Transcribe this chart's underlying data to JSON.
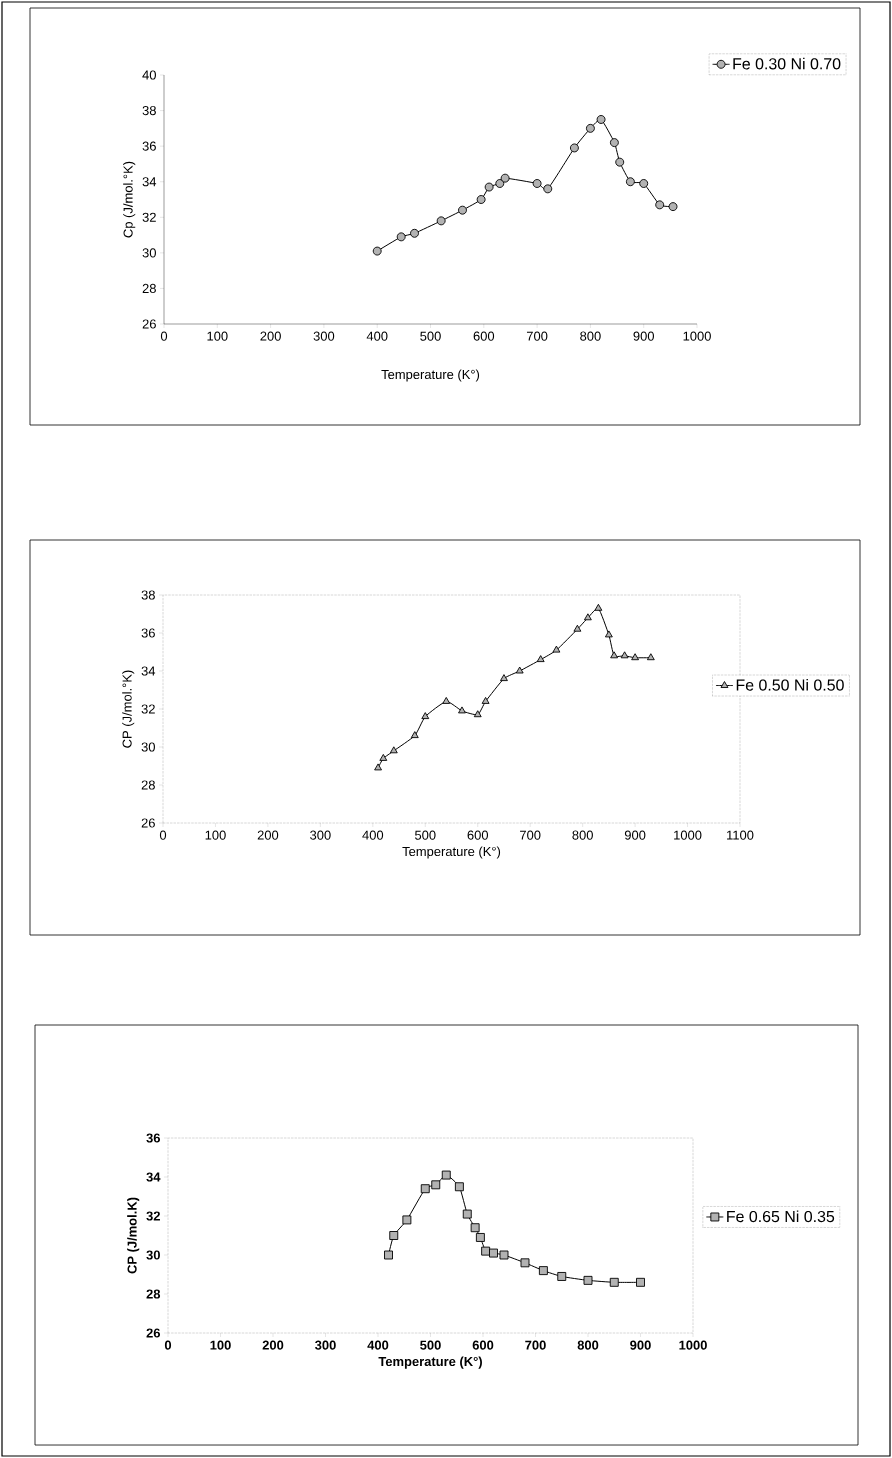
{
  "chart_data": [
    {
      "type": "line",
      "xlabel": "Temperature (K°)",
      "ylabel": "Cp (J/mol.°K)",
      "xlim": [
        0,
        1000
      ],
      "xticks": [
        0,
        100,
        200,
        300,
        400,
        500,
        600,
        700,
        800,
        900,
        1000
      ],
      "ylim": [
        26,
        40
      ],
      "yticks": [
        26,
        28,
        30,
        32,
        34,
        36,
        38,
        40
      ],
      "legend": "top right",
      "marker": "circle",
      "line_style": "solid",
      "series": [
        {
          "name": "Fe 0.30 Ni 0.70",
          "color": "#000000",
          "x": [
            400,
            445,
            470,
            520,
            560,
            595,
            610,
            630,
            640,
            700,
            720,
            770,
            800,
            820,
            845,
            855,
            875,
            900,
            930,
            955
          ],
          "values": [
            30.1,
            30.9,
            31.1,
            31.8,
            32.4,
            33.0,
            33.7,
            33.9,
            34.2,
            33.9,
            33.6,
            35.9,
            37.0,
            37.5,
            36.2,
            35.1,
            34.0,
            33.9,
            32.7,
            32.6
          ]
        }
      ]
    },
    {
      "type": "line",
      "xlabel": "Temperature (K°)",
      "ylabel": "CP (J/mol.°K)",
      "xlim": [
        0,
        1100
      ],
      "xticks": [
        0,
        100,
        200,
        300,
        400,
        500,
        600,
        700,
        800,
        900,
        1000,
        1100
      ],
      "ylim": [
        26,
        38
      ],
      "yticks": [
        26,
        28,
        30,
        32,
        34,
        36,
        38
      ],
      "legend": "right",
      "marker": "triangle",
      "line_style": "solid",
      "series": [
        {
          "name": "Fe 0.50 Ni 0.50",
          "color": "#000000",
          "x": [
            410,
            420,
            440,
            480,
            500,
            540,
            570,
            600,
            615,
            650,
            680,
            720,
            750,
            790,
            810,
            830,
            850,
            860,
            880,
            900,
            930
          ],
          "values": [
            28.9,
            29.4,
            29.8,
            30.6,
            31.6,
            32.4,
            31.9,
            31.7,
            32.4,
            33.6,
            34.0,
            34.6,
            35.1,
            36.2,
            36.8,
            37.3,
            35.9,
            34.8,
            34.8,
            34.7,
            34.7
          ]
        }
      ]
    },
    {
      "type": "line",
      "xlabel": "Temperature (K°)",
      "ylabel": "CP (J/mol.K)",
      "xlim": [
        0,
        1000
      ],
      "xticks": [
        0,
        100,
        200,
        300,
        400,
        500,
        600,
        700,
        800,
        900,
        1000
      ],
      "ylim": [
        26,
        36
      ],
      "yticks": [
        26,
        28,
        30,
        32,
        34,
        36
      ],
      "legend": "right",
      "marker": "square",
      "line_style": "solid",
      "series": [
        {
          "name": "Fe 0.65 Ni 0.35",
          "color": "#000000",
          "x": [
            420,
            430,
            455,
            490,
            510,
            530,
            555,
            570,
            585,
            595,
            605,
            620,
            640,
            680,
            715,
            750,
            800,
            850,
            900
          ],
          "values": [
            30.0,
            31.0,
            31.8,
            33.4,
            33.6,
            34.1,
            33.5,
            32.1,
            31.4,
            30.9,
            30.2,
            30.1,
            30.0,
            29.6,
            29.2,
            28.9,
            28.7,
            28.6,
            28.6
          ]
        }
      ]
    }
  ]
}
